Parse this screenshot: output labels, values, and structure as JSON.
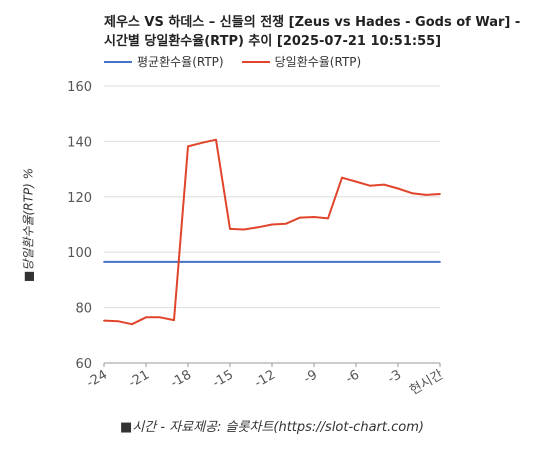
{
  "chart_data": {
    "type": "line",
    "title_line1": "제우스 VS 하데스 – 신들의 전쟁 [Zeus vs Hades - Gods of War] -",
    "title_line2": "시간별 당일환수율(RTP) 추이 [2025-07-21 10:51:55]",
    "ylabel": "■당일환수율(RTP) %",
    "xlabel": "■시간 - 자료제공: 슬롯차트(https://slot-chart.com)",
    "ylim": [
      60,
      160
    ],
    "yticks": [
      "60",
      "80",
      "100",
      "120",
      "140",
      "160"
    ],
    "xticks": [
      "-24",
      "-21",
      "-18",
      "-15",
      "-12",
      "-9",
      "-6",
      "-3",
      "현시간"
    ],
    "x": [
      -24,
      -23,
      -22,
      -21,
      -20,
      -19,
      -18,
      -17,
      -16,
      -15,
      -14,
      -13,
      -12,
      -11,
      -10,
      -9,
      -8,
      -7,
      -6,
      -5,
      -4,
      -3,
      -2,
      -1,
      0
    ],
    "series": [
      {
        "name": "평균환수율(RTP)",
        "color": "#4472C4",
        "values": [
          96.5,
          96.5,
          96.5,
          96.5,
          96.5,
          96.5,
          96.5,
          96.5,
          96.5,
          96.5,
          96.5,
          96.5,
          96.5,
          96.5,
          96.5,
          96.5,
          96.5,
          96.5,
          96.5,
          96.5,
          96.5,
          96.5,
          96.5,
          96.5,
          96.5
        ]
      },
      {
        "name": "당일환수율(RTP)",
        "color": "#E0452B",
        "values": [
          75.3,
          75.1,
          74.0,
          76.5,
          76.5,
          75.5,
          138.2,
          139.5,
          140.6,
          108.4,
          108.2,
          109.0,
          110.0,
          110.3,
          112.5,
          112.7,
          112.2,
          126.9,
          125.5,
          124.0,
          124.4,
          123.0,
          121.3,
          120.7,
          121.0
        ]
      }
    ]
  }
}
